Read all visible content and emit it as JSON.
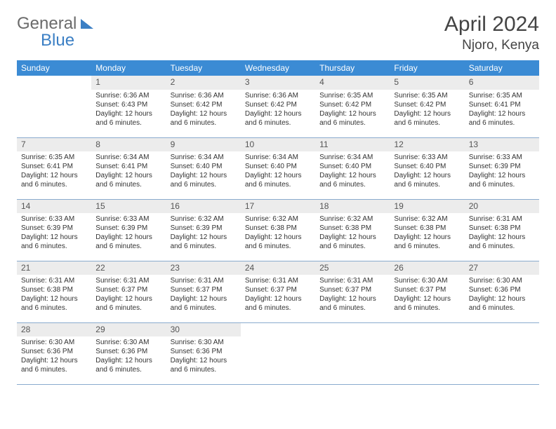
{
  "logo": {
    "text1": "General",
    "text2": "Blue"
  },
  "title": "April 2024",
  "location": "Njoro, Kenya",
  "colors": {
    "header_bg": "#3b8bd4",
    "header_text": "#ffffff",
    "daynum_bg": "#ececec",
    "border": "#8aabce",
    "logo_gray": "#6b6b6b",
    "logo_blue": "#3b7fc4"
  },
  "weekdays": [
    "Sunday",
    "Monday",
    "Tuesday",
    "Wednesday",
    "Thursday",
    "Friday",
    "Saturday"
  ],
  "weeks": [
    [
      {
        "day": "",
        "lines": []
      },
      {
        "day": "1",
        "lines": [
          "Sunrise: 6:36 AM",
          "Sunset: 6:43 PM",
          "Daylight: 12 hours",
          "and 6 minutes."
        ]
      },
      {
        "day": "2",
        "lines": [
          "Sunrise: 6:36 AM",
          "Sunset: 6:42 PM",
          "Daylight: 12 hours",
          "and 6 minutes."
        ]
      },
      {
        "day": "3",
        "lines": [
          "Sunrise: 6:36 AM",
          "Sunset: 6:42 PM",
          "Daylight: 12 hours",
          "and 6 minutes."
        ]
      },
      {
        "day": "4",
        "lines": [
          "Sunrise: 6:35 AM",
          "Sunset: 6:42 PM",
          "Daylight: 12 hours",
          "and 6 minutes."
        ]
      },
      {
        "day": "5",
        "lines": [
          "Sunrise: 6:35 AM",
          "Sunset: 6:42 PM",
          "Daylight: 12 hours",
          "and 6 minutes."
        ]
      },
      {
        "day": "6",
        "lines": [
          "Sunrise: 6:35 AM",
          "Sunset: 6:41 PM",
          "Daylight: 12 hours",
          "and 6 minutes."
        ]
      }
    ],
    [
      {
        "day": "7",
        "lines": [
          "Sunrise: 6:35 AM",
          "Sunset: 6:41 PM",
          "Daylight: 12 hours",
          "and 6 minutes."
        ]
      },
      {
        "day": "8",
        "lines": [
          "Sunrise: 6:34 AM",
          "Sunset: 6:41 PM",
          "Daylight: 12 hours",
          "and 6 minutes."
        ]
      },
      {
        "day": "9",
        "lines": [
          "Sunrise: 6:34 AM",
          "Sunset: 6:40 PM",
          "Daylight: 12 hours",
          "and 6 minutes."
        ]
      },
      {
        "day": "10",
        "lines": [
          "Sunrise: 6:34 AM",
          "Sunset: 6:40 PM",
          "Daylight: 12 hours",
          "and 6 minutes."
        ]
      },
      {
        "day": "11",
        "lines": [
          "Sunrise: 6:34 AM",
          "Sunset: 6:40 PM",
          "Daylight: 12 hours",
          "and 6 minutes."
        ]
      },
      {
        "day": "12",
        "lines": [
          "Sunrise: 6:33 AM",
          "Sunset: 6:40 PM",
          "Daylight: 12 hours",
          "and 6 minutes."
        ]
      },
      {
        "day": "13",
        "lines": [
          "Sunrise: 6:33 AM",
          "Sunset: 6:39 PM",
          "Daylight: 12 hours",
          "and 6 minutes."
        ]
      }
    ],
    [
      {
        "day": "14",
        "lines": [
          "Sunrise: 6:33 AM",
          "Sunset: 6:39 PM",
          "Daylight: 12 hours",
          "and 6 minutes."
        ]
      },
      {
        "day": "15",
        "lines": [
          "Sunrise: 6:33 AM",
          "Sunset: 6:39 PM",
          "Daylight: 12 hours",
          "and 6 minutes."
        ]
      },
      {
        "day": "16",
        "lines": [
          "Sunrise: 6:32 AM",
          "Sunset: 6:39 PM",
          "Daylight: 12 hours",
          "and 6 minutes."
        ]
      },
      {
        "day": "17",
        "lines": [
          "Sunrise: 6:32 AM",
          "Sunset: 6:38 PM",
          "Daylight: 12 hours",
          "and 6 minutes."
        ]
      },
      {
        "day": "18",
        "lines": [
          "Sunrise: 6:32 AM",
          "Sunset: 6:38 PM",
          "Daylight: 12 hours",
          "and 6 minutes."
        ]
      },
      {
        "day": "19",
        "lines": [
          "Sunrise: 6:32 AM",
          "Sunset: 6:38 PM",
          "Daylight: 12 hours",
          "and 6 minutes."
        ]
      },
      {
        "day": "20",
        "lines": [
          "Sunrise: 6:31 AM",
          "Sunset: 6:38 PM",
          "Daylight: 12 hours",
          "and 6 minutes."
        ]
      }
    ],
    [
      {
        "day": "21",
        "lines": [
          "Sunrise: 6:31 AM",
          "Sunset: 6:38 PM",
          "Daylight: 12 hours",
          "and 6 minutes."
        ]
      },
      {
        "day": "22",
        "lines": [
          "Sunrise: 6:31 AM",
          "Sunset: 6:37 PM",
          "Daylight: 12 hours",
          "and 6 minutes."
        ]
      },
      {
        "day": "23",
        "lines": [
          "Sunrise: 6:31 AM",
          "Sunset: 6:37 PM",
          "Daylight: 12 hours",
          "and 6 minutes."
        ]
      },
      {
        "day": "24",
        "lines": [
          "Sunrise: 6:31 AM",
          "Sunset: 6:37 PM",
          "Daylight: 12 hours",
          "and 6 minutes."
        ]
      },
      {
        "day": "25",
        "lines": [
          "Sunrise: 6:31 AM",
          "Sunset: 6:37 PM",
          "Daylight: 12 hours",
          "and 6 minutes."
        ]
      },
      {
        "day": "26",
        "lines": [
          "Sunrise: 6:30 AM",
          "Sunset: 6:37 PM",
          "Daylight: 12 hours",
          "and 6 minutes."
        ]
      },
      {
        "day": "27",
        "lines": [
          "Sunrise: 6:30 AM",
          "Sunset: 6:36 PM",
          "Daylight: 12 hours",
          "and 6 minutes."
        ]
      }
    ],
    [
      {
        "day": "28",
        "lines": [
          "Sunrise: 6:30 AM",
          "Sunset: 6:36 PM",
          "Daylight: 12 hours",
          "and 6 minutes."
        ]
      },
      {
        "day": "29",
        "lines": [
          "Sunrise: 6:30 AM",
          "Sunset: 6:36 PM",
          "Daylight: 12 hours",
          "and 6 minutes."
        ]
      },
      {
        "day": "30",
        "lines": [
          "Sunrise: 6:30 AM",
          "Sunset: 6:36 PM",
          "Daylight: 12 hours",
          "and 6 minutes."
        ]
      },
      {
        "day": "",
        "lines": []
      },
      {
        "day": "",
        "lines": []
      },
      {
        "day": "",
        "lines": []
      },
      {
        "day": "",
        "lines": []
      }
    ]
  ]
}
